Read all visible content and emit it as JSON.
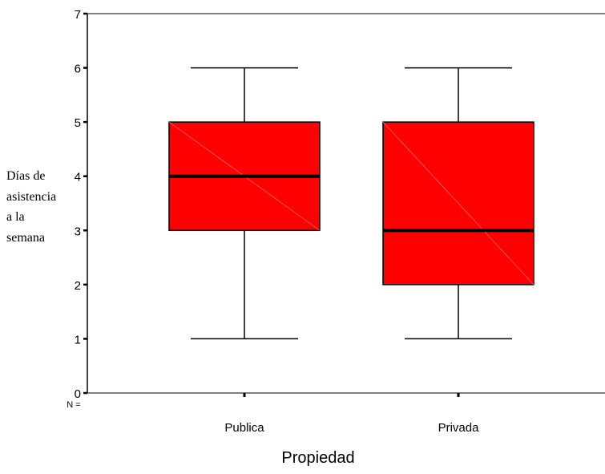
{
  "chart_data": {
    "type": "boxplot",
    "xlabel": "Propiedad",
    "ylabel_lines": [
      "Días de",
      "asistencia",
      "a la",
      "semana"
    ],
    "ylim": [
      0,
      7
    ],
    "yticks": [
      0,
      1,
      2,
      3,
      4,
      5,
      6,
      7
    ],
    "n_label": "N =",
    "categories": [
      "Publica",
      "Privada"
    ],
    "boxes": [
      {
        "category": "Publica",
        "min": 1,
        "q1": 3,
        "median": 4,
        "q3": 5,
        "max": 6
      },
      {
        "category": "Privada",
        "min": 1,
        "q1": 2,
        "median": 3,
        "q3": 5,
        "max": 6
      }
    ],
    "box_color": "#ff0000",
    "grid": false
  }
}
